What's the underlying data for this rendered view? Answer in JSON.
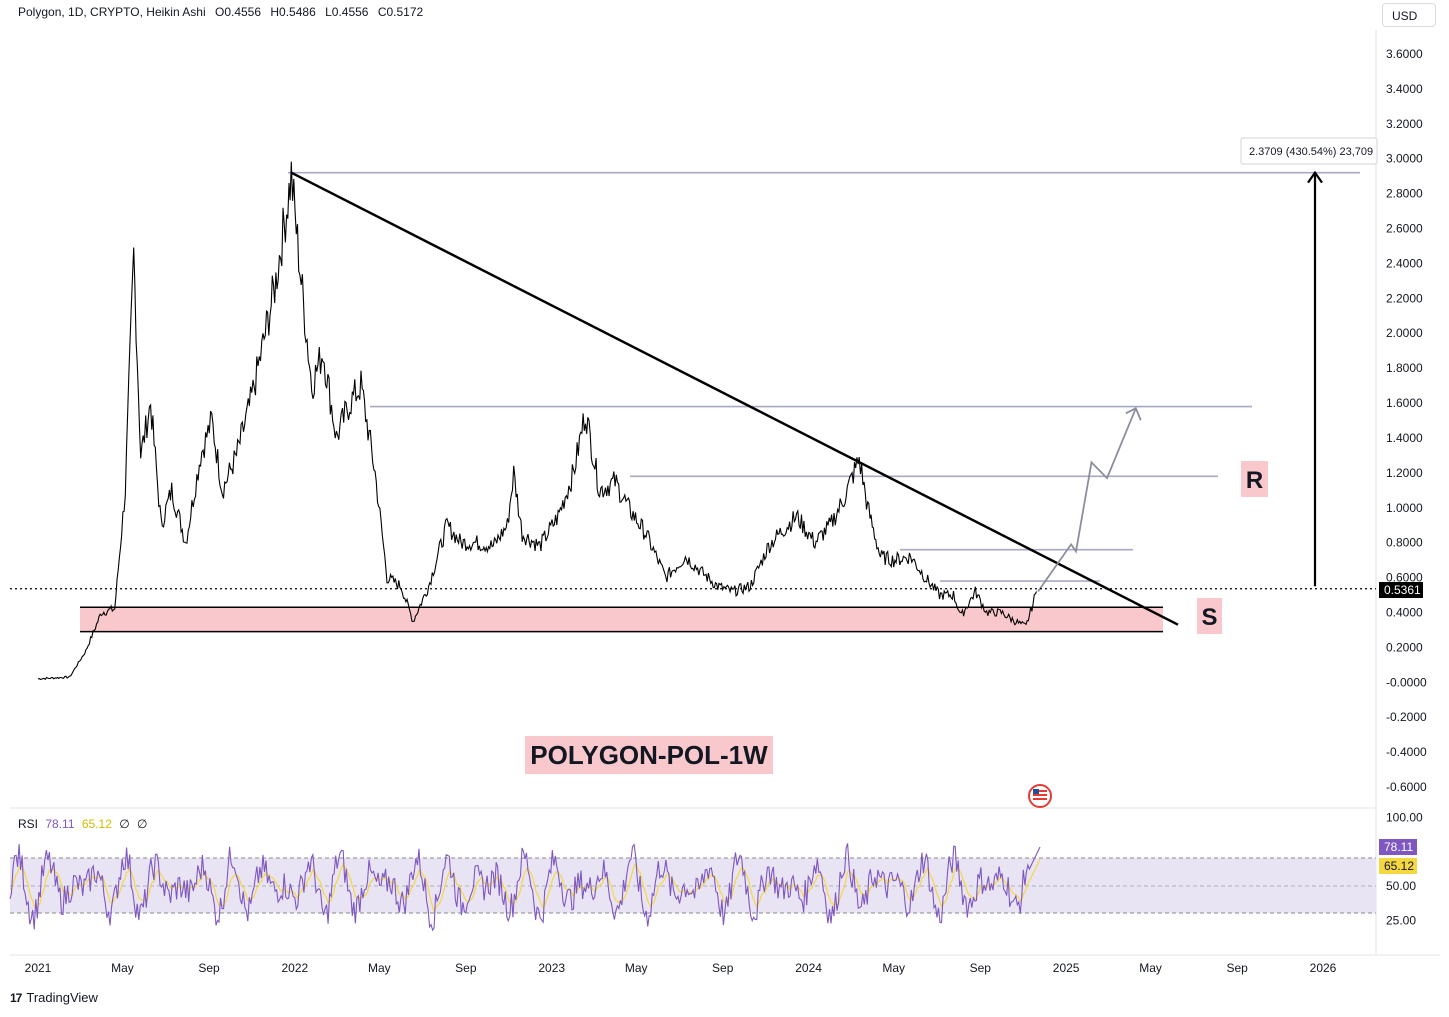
{
  "legend": {
    "symbol": "Polygon, 1D, CRYPTO, Heikin Ashi",
    "open": "O0.4556",
    "high": "H0.5486",
    "low": "L0.4556",
    "close": "C0.5172"
  },
  "currency_button": "USD",
  "measure_label": "2.3709 (430.54%) 23,709",
  "current_price_label": "0.5361",
  "zone_labels": {
    "resistance": "R",
    "support": "S"
  },
  "title_banner": "POLYGON-POL-1W",
  "rsi": {
    "label": "RSI",
    "value": "78.11",
    "ma_value": "65.12",
    "extra1": "∅",
    "extra2": "∅",
    "tag_value": "78.11",
    "tag_ma": "65.12"
  },
  "brand": "TradingView",
  "colors": {
    "price_line": "#000000",
    "support_zone": "#f8c8cc",
    "rsi_line": "#7e57c2",
    "rsi_ma": "#f5d742",
    "rsi_band": "#e9e4f3",
    "level_line": "#a8a9c0",
    "label_bg": "#f8c8cc"
  },
  "chart_data": {
    "type": "line",
    "title": "Polygon, 1D, CRYPTO, Heikin Ashi",
    "y_ticks": [
      "3.6000",
      "3.4000",
      "3.2000",
      "3.0000",
      "2.8000",
      "2.6000",
      "2.4000",
      "2.2000",
      "2.0000",
      "1.8000",
      "1.6000",
      "1.4000",
      "1.2000",
      "1.0000",
      "0.8000",
      "0.6000",
      "0.4000",
      "0.2000",
      "-0.0000",
      "-0.2000",
      "-0.4000",
      "-0.6000"
    ],
    "ylim": [
      -0.6,
      3.6
    ],
    "x_ticks": [
      "2021",
      "May",
      "Sep",
      "2022",
      "May",
      "Sep",
      "2023",
      "May",
      "Sep",
      "2024",
      "May",
      "Sep",
      "2025",
      "May",
      "Sep",
      "2026"
    ],
    "series": [
      {
        "values_xy": [
          [
            "2021-01-01",
            0.02
          ],
          [
            "2021-02-15",
            0.03
          ],
          [
            "2021-03-10",
            0.18
          ],
          [
            "2021-04-01",
            0.4
          ],
          [
            "2021-04-20",
            0.42
          ],
          [
            "2021-05-05",
            1.1
          ],
          [
            "2021-05-17",
            2.45
          ],
          [
            "2021-05-27",
            1.3
          ],
          [
            "2021-06-10",
            1.6
          ],
          [
            "2021-06-25",
            0.9
          ],
          [
            "2021-07-10",
            1.1
          ],
          [
            "2021-07-30",
            0.8
          ],
          [
            "2021-08-20",
            1.3
          ],
          [
            "2021-09-05",
            1.5
          ],
          [
            "2021-09-20",
            1.1
          ],
          [
            "2021-10-10",
            1.3
          ],
          [
            "2021-10-30",
            1.6
          ],
          [
            "2021-11-15",
            1.9
          ],
          [
            "2021-12-05",
            2.3
          ],
          [
            "2021-12-27",
            2.9
          ],
          [
            "2022-01-10",
            2.3
          ],
          [
            "2022-01-25",
            1.7
          ],
          [
            "2022-02-10",
            1.9
          ],
          [
            "2022-03-01",
            1.4
          ],
          [
            "2022-03-20",
            1.6
          ],
          [
            "2022-04-05",
            1.7
          ],
          [
            "2022-04-25",
            1.2
          ],
          [
            "2022-05-12",
            0.6
          ],
          [
            "2022-06-01",
            0.55
          ],
          [
            "2022-06-18",
            0.35
          ],
          [
            "2022-07-10",
            0.55
          ],
          [
            "2022-08-05",
            0.9
          ],
          [
            "2022-08-25",
            0.8
          ],
          [
            "2022-09-15",
            0.8
          ],
          [
            "2022-10-10",
            0.78
          ],
          [
            "2022-10-30",
            0.9
          ],
          [
            "2022-11-08",
            1.2
          ],
          [
            "2022-11-20",
            0.85
          ],
          [
            "2022-12-15",
            0.78
          ],
          [
            "2023-01-10",
            0.95
          ],
          [
            "2023-02-01",
            1.2
          ],
          [
            "2023-02-18",
            1.55
          ],
          [
            "2023-03-10",
            1.1
          ],
          [
            "2023-04-01",
            1.15
          ],
          [
            "2023-04-20",
            1.0
          ],
          [
            "2023-05-15",
            0.85
          ],
          [
            "2023-06-12",
            0.6
          ],
          [
            "2023-07-10",
            0.72
          ],
          [
            "2023-08-05",
            0.62
          ],
          [
            "2023-08-25",
            0.55
          ],
          [
            "2023-09-15",
            0.52
          ],
          [
            "2023-10-10",
            0.55
          ],
          [
            "2023-11-05",
            0.78
          ],
          [
            "2023-11-20",
            0.85
          ],
          [
            "2023-12-15",
            0.95
          ],
          [
            "2024-01-10",
            0.8
          ],
          [
            "2024-02-01",
            0.9
          ],
          [
            "2024-02-20",
            1.05
          ],
          [
            "2024-03-13",
            1.28
          ],
          [
            "2024-03-25",
            1.0
          ],
          [
            "2024-04-12",
            0.72
          ],
          [
            "2024-05-01",
            0.7
          ],
          [
            "2024-05-25",
            0.72
          ],
          [
            "2024-06-15",
            0.6
          ],
          [
            "2024-07-05",
            0.5
          ],
          [
            "2024-07-25",
            0.5
          ],
          [
            "2024-08-05",
            0.38
          ],
          [
            "2024-08-25",
            0.52
          ],
          [
            "2024-09-10",
            0.4
          ],
          [
            "2024-10-01",
            0.4
          ],
          [
            "2024-10-20",
            0.35
          ],
          [
            "2024-11-05",
            0.32
          ],
          [
            "2024-11-20",
            0.52
          ]
        ]
      }
    ],
    "annotations": {
      "support_zone": [
        0.29,
        0.43
      ],
      "descending_trendline": [
        [
          "2021-12-27",
          2.92
        ],
        [
          "2025-04-10",
          0.35
        ]
      ],
      "horizontal_levels": [
        2.92,
        1.58,
        1.18,
        0.76,
        0.58
      ],
      "projection_path": [
        [
          0.52,
          "2024-11-22"
        ],
        [
          0.79,
          "2025-01-08"
        ],
        [
          0.75,
          "2025-01-15"
        ],
        [
          1.26,
          "2025-02-06"
        ],
        [
          1.17,
          "2025-02-28"
        ],
        [
          1.57,
          "2025-04-10"
        ]
      ],
      "measure_arrow": [
        0.55,
        2.92
      ],
      "current_price": 0.5361
    },
    "rsi": {
      "ylim": [
        0,
        100
      ],
      "levels": [
        70,
        50,
        30
      ],
      "tick_labels": [
        "100.00",
        "50.00",
        "25.00"
      ],
      "last": 78.11,
      "last_ma": 65.12
    }
  }
}
